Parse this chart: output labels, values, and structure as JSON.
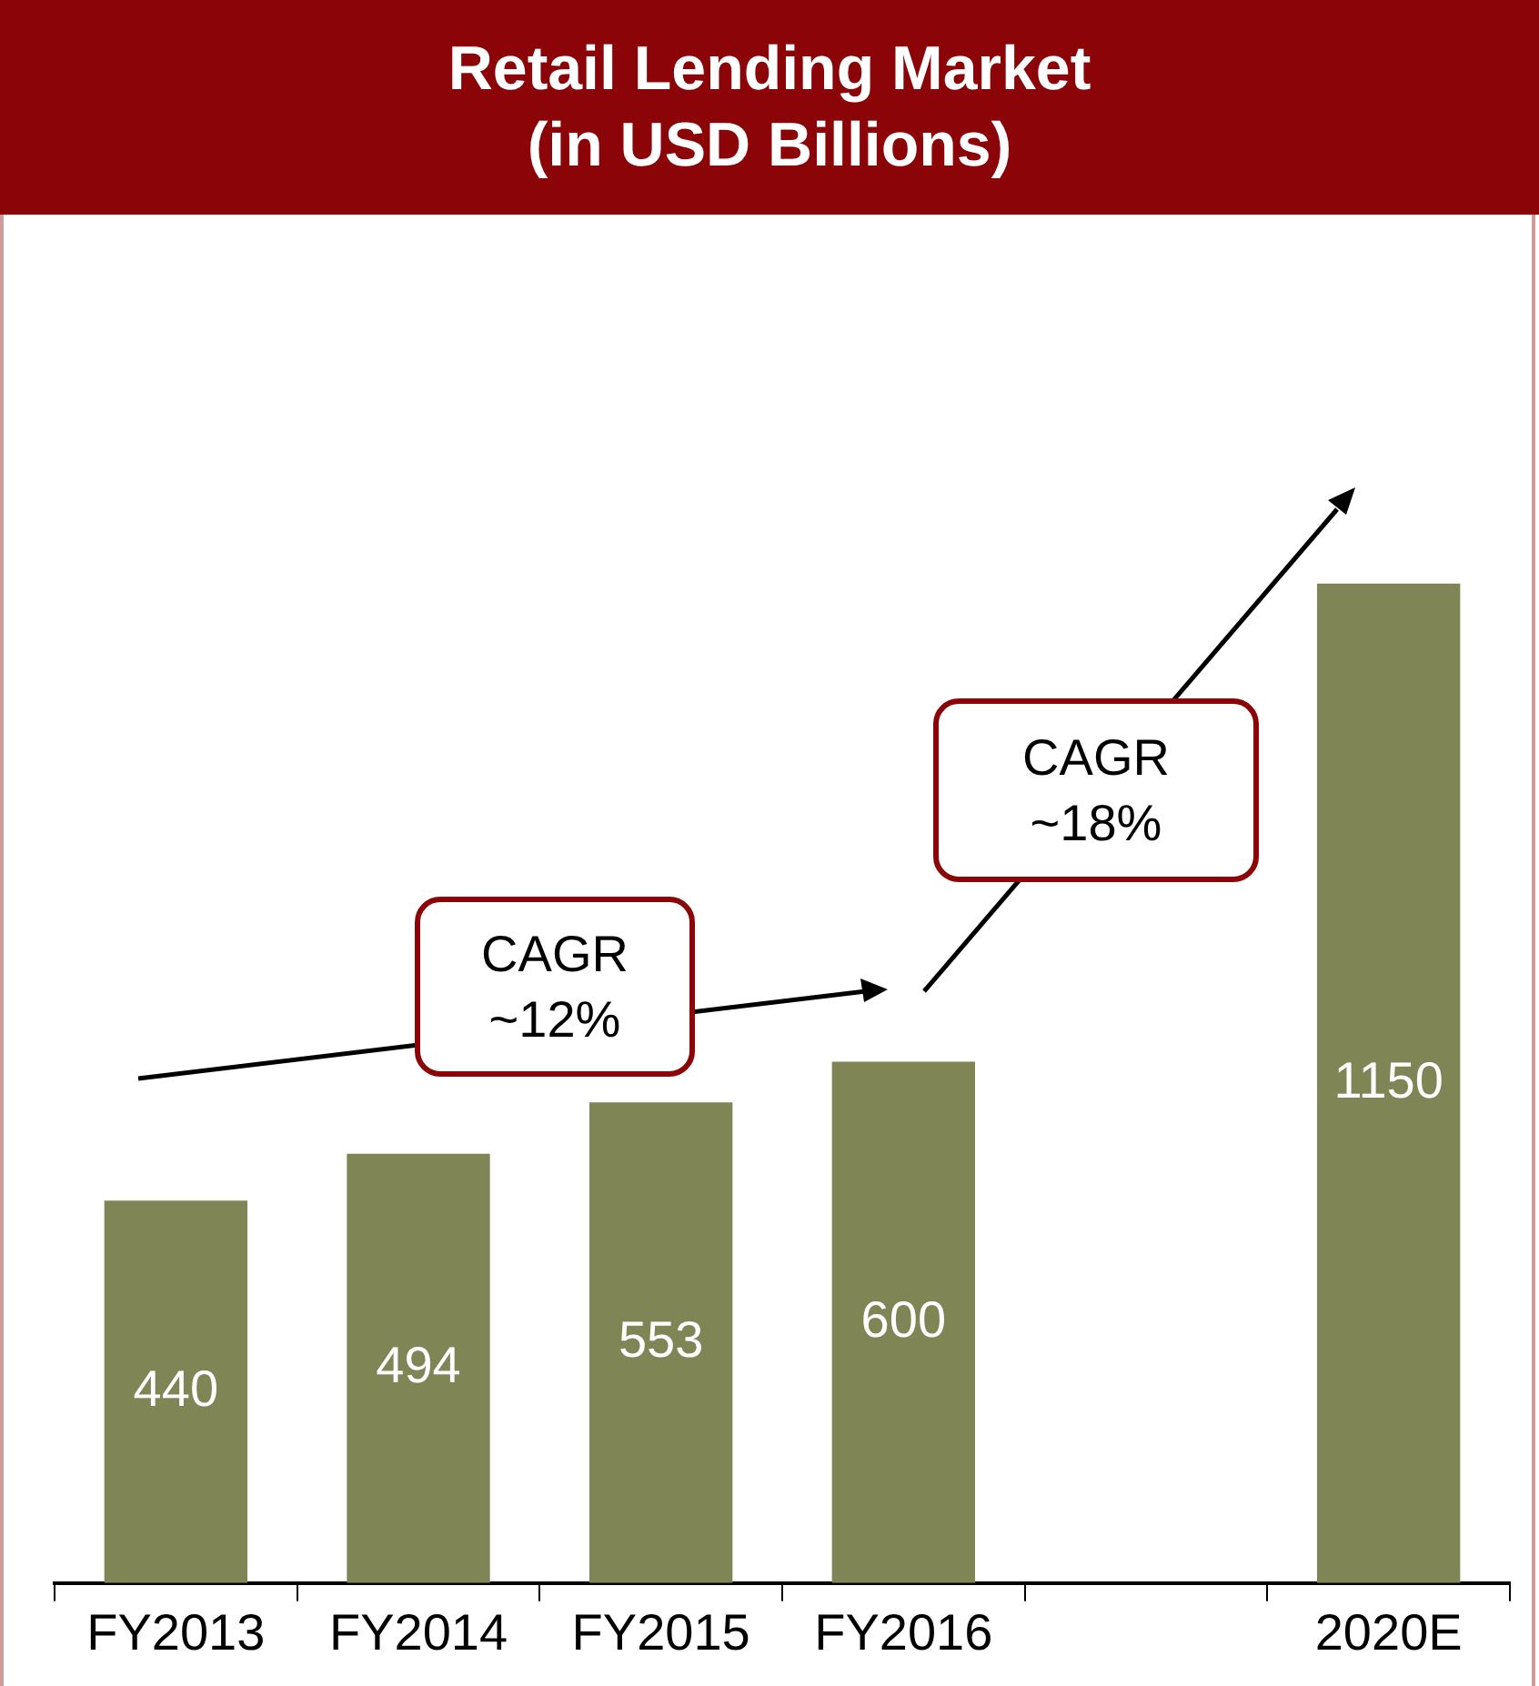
{
  "chart_data": {
    "type": "bar",
    "title": "Retail Lending Market\n(in USD Billions)",
    "categories": [
      "FY2013",
      "FY2014",
      "FY2015",
      "FY2016",
      null,
      "2020E"
    ],
    "values": [
      440,
      494,
      553,
      600,
      null,
      1150
    ],
    "color": "#808556",
    "data_labels": true,
    "annotations": [
      "CAGR\n~12%",
      "CAGR\n~18%"
    ]
  }
}
